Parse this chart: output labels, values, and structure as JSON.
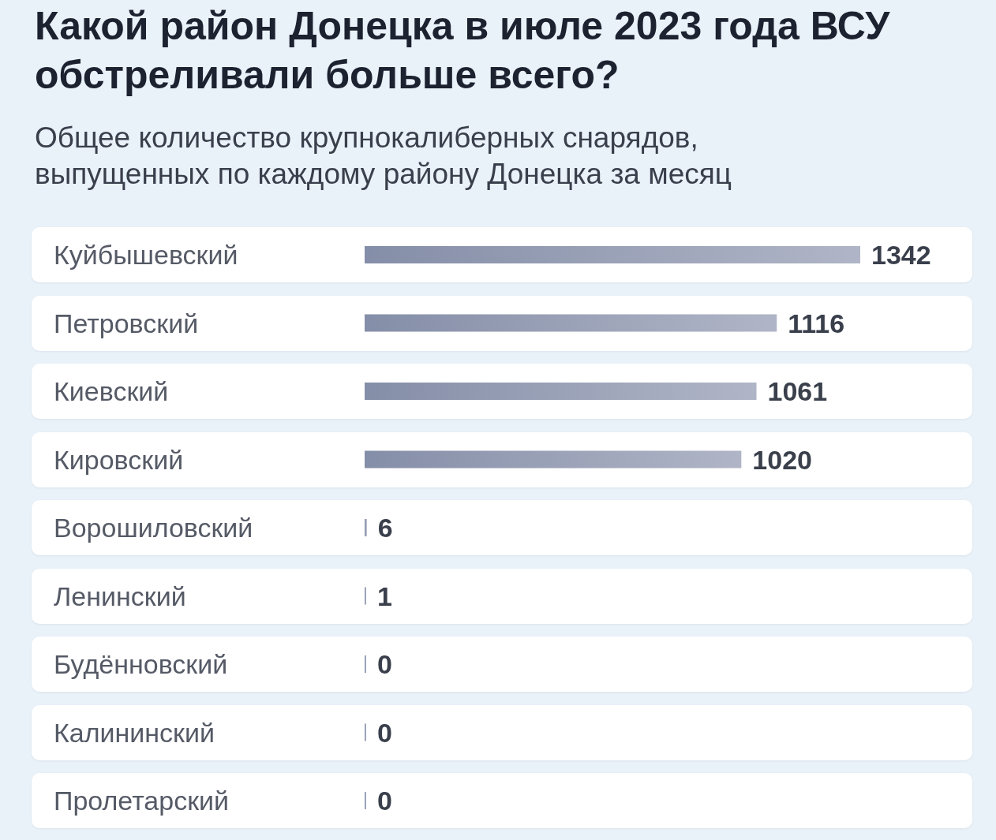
{
  "chart_data": {
    "type": "bar",
    "orientation": "horizontal",
    "title": "Какой район Донецка в июле 2023 года ВСУ обстреливали больше всего?",
    "subtitle": "Общее количество крупнокалиберных снарядов, выпущенных по каждому району Донецка за месяц",
    "categories": [
      "Куйбышевский",
      "Петровский",
      "Киевский",
      "Кировский",
      "Ворошиловский",
      "Ленинский",
      "Будённовский",
      "Калининский",
      "Пролетарский"
    ],
    "values": [
      1342,
      1116,
      1061,
      1020,
      6,
      1,
      0,
      0,
      0
    ],
    "color": "#858ea8",
    "data_labels": true
  }
}
